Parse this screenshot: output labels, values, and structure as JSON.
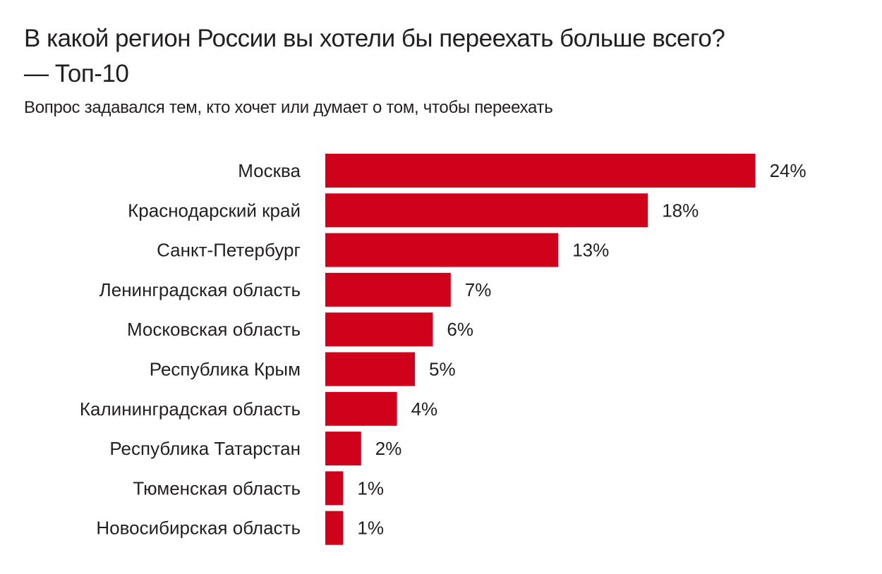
{
  "chart_data": {
    "type": "bar",
    "orientation": "horizontal",
    "title": "В какой регион России вы хотели бы переехать больше всего? — Топ-10",
    "subtitle": "Вопрос задавался тем, кто хочет или думает о том, чтобы переехать",
    "categories": [
      "Москва",
      "Краснодарский край",
      "Санкт-Петербург",
      "Ленинградская область",
      "Московская область",
      "Республика Крым",
      "Калининградская область",
      "Республика Татарстан",
      "Тюменская область",
      "Новосибирская область"
    ],
    "values": [
      24,
      18,
      13,
      7,
      6,
      5,
      4,
      2,
      1,
      1
    ],
    "value_labels": [
      "24%",
      "18%",
      "13%",
      "7%",
      "6%",
      "5%",
      "4%",
      "2%",
      "1%",
      "1%"
    ],
    "unit": "%",
    "bar_color": "#d0021b",
    "grid": false,
    "legend": "none"
  }
}
